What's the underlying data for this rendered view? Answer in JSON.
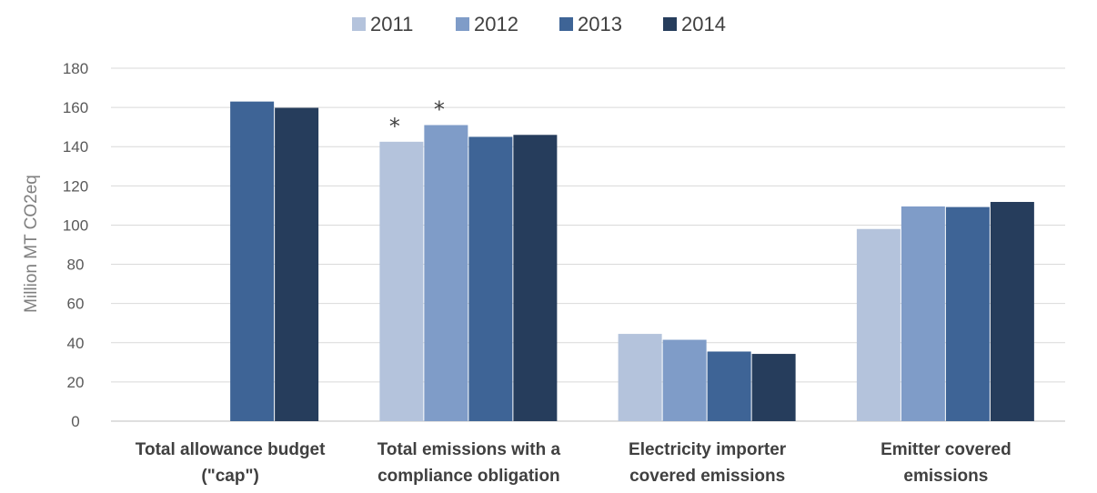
{
  "chart_data": {
    "type": "bar",
    "categories": [
      [
        "Total allowance budget",
        "(\"cap\")"
      ],
      [
        "Total emissions with a",
        "compliance obligation"
      ],
      [
        "Electricity importer",
        "covered emissions"
      ],
      [
        "Emitter covered",
        "emissions"
      ]
    ],
    "series": [
      {
        "name": "2011",
        "color": "#b4c3dc",
        "values": [
          null,
          142.5,
          44.5,
          98
        ]
      },
      {
        "name": "2012",
        "color": "#7f9cc8",
        "values": [
          null,
          151,
          41.5,
          109.5
        ]
      },
      {
        "name": "2013",
        "color": "#3e6496",
        "values": [
          163,
          145,
          35.5,
          109.2
        ]
      },
      {
        "name": "2014",
        "color": "#263d5c",
        "values": [
          159.8,
          146,
          34.3,
          111.8
        ]
      }
    ],
    "annotations": [
      {
        "text": "*",
        "category": 1,
        "series": 0
      },
      {
        "text": "*",
        "category": 1,
        "series": 1
      }
    ],
    "ylabel": "Million MT CO2eq",
    "xlabel": "",
    "ylim": [
      0,
      180
    ],
    "yticks": [
      0,
      20,
      40,
      60,
      80,
      100,
      120,
      140,
      160,
      180
    ],
    "grid": true,
    "legend_position": "top-center"
  }
}
